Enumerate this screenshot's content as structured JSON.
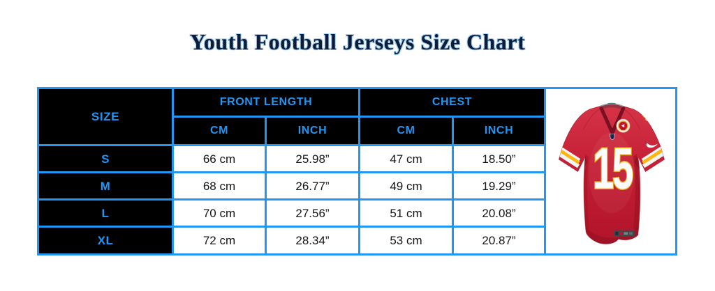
{
  "page": {
    "title": "Youth Football Jerseys Size Chart"
  },
  "colors": {
    "accent_blue": "#2196F3",
    "header_bg": "#000000",
    "cell_bg": "#ffffff",
    "title_navy": "#0d1c38",
    "jersey_red": "#C8102E",
    "jersey_gold": "#FFB612"
  },
  "table": {
    "size_header": "SIZE",
    "group_headers": [
      {
        "label": "FRONT LENGTH"
      },
      {
        "label": "CHEST"
      }
    ],
    "sub_headers": [
      "CM",
      "INCH",
      "CM",
      "INCH"
    ],
    "rows": [
      {
        "size": "S",
        "front_cm": "66 cm",
        "front_inch": "25.98”",
        "chest_cm": "47 cm",
        "chest_inch": "18.50”"
      },
      {
        "size": "M",
        "front_cm": "68 cm",
        "front_inch": "26.77”",
        "chest_cm": "49 cm",
        "chest_inch": "19.29”"
      },
      {
        "size": "L",
        "front_cm": "70 cm",
        "front_inch": "27.56”",
        "chest_cm": "51 cm",
        "chest_inch": "20.08”"
      },
      {
        "size": "XL",
        "front_cm": "72 cm",
        "front_inch": "28.34”",
        "chest_cm": "53 cm",
        "chest_inch": "20.87”"
      }
    ]
  },
  "jersey": {
    "number": "15"
  },
  "chart_data": {
    "type": "table",
    "title": "Youth Football Jerseys Size Chart",
    "columns": [
      "SIZE",
      "FRONT LENGTH CM",
      "FRONT LENGTH INCH",
      "CHEST CM",
      "CHEST INCH"
    ],
    "rows": [
      [
        "S",
        "66 cm",
        "25.98”",
        "47 cm",
        "18.50”"
      ],
      [
        "M",
        "68 cm",
        "26.77”",
        "49 cm",
        "19.29”"
      ],
      [
        "L",
        "70 cm",
        "27.56”",
        "51 cm",
        "20.08”"
      ],
      [
        "XL",
        "72 cm",
        "28.34”",
        "53 cm",
        "20.87”"
      ]
    ]
  }
}
